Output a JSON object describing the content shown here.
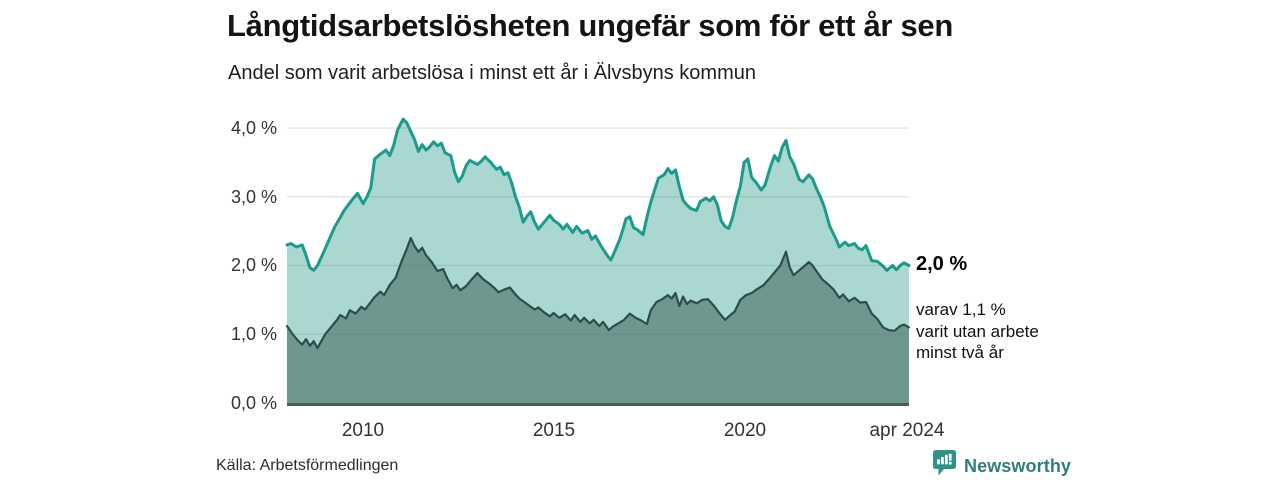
{
  "chart_data": {
    "type": "area",
    "title": "Långtidsarbetslösheten ungefär som för ett år sen",
    "subtitle": "Andel som varit arbetslösa i minst ett år i Älvsbyns kommun",
    "xlim": [
      2008,
      2024.33
    ],
    "ylim": [
      0,
      4.19
    ],
    "grid": "horizontal",
    "legend": "none",
    "y_ticks": [
      "0,0 %",
      "1,0 %",
      "2,0 %",
      "3,0 %",
      "4,0 %"
    ],
    "y_tick_values": [
      0,
      1,
      2,
      3,
      4
    ],
    "x_ticks": [
      {
        "label": "2010",
        "year": 2010
      },
      {
        "label": "2015",
        "year": 2015
      },
      {
        "label": "2020",
        "year": 2020
      },
      {
        "label": "apr 2024",
        "year": 2024.29
      }
    ],
    "grid_color": "rgba(100,100,100,0.17)",
    "axis_color": "#45605b",
    "series": [
      {
        "name": "Andel arbetslösa minst ett år",
        "line_color": "#1a9b8b",
        "fill_color": "#aad7d0",
        "line_width": 3,
        "points": [
          [
            2008.0,
            2.3
          ],
          [
            2008.1,
            2.32
          ],
          [
            2008.25,
            2.27
          ],
          [
            2008.4,
            2.3
          ],
          [
            2008.5,
            2.15
          ],
          [
            2008.6,
            1.97
          ],
          [
            2008.7,
            1.93
          ],
          [
            2008.8,
            2.0
          ],
          [
            2008.95,
            2.18
          ],
          [
            2009.1,
            2.37
          ],
          [
            2009.25,
            2.56
          ],
          [
            2009.4,
            2.7
          ],
          [
            2009.5,
            2.8
          ],
          [
            2009.7,
            2.95
          ],
          [
            2009.85,
            3.05
          ],
          [
            2010.0,
            2.9
          ],
          [
            2010.1,
            3.0
          ],
          [
            2010.2,
            3.13
          ],
          [
            2010.3,
            3.55
          ],
          [
            2010.45,
            3.62
          ],
          [
            2010.6,
            3.68
          ],
          [
            2010.7,
            3.6
          ],
          [
            2010.8,
            3.75
          ],
          [
            2010.9,
            3.97
          ],
          [
            2011.0,
            4.08
          ],
          [
            2011.05,
            4.13
          ],
          [
            2011.15,
            4.07
          ],
          [
            2011.25,
            3.95
          ],
          [
            2011.35,
            3.83
          ],
          [
            2011.45,
            3.66
          ],
          [
            2011.55,
            3.76
          ],
          [
            2011.65,
            3.68
          ],
          [
            2011.75,
            3.73
          ],
          [
            2011.85,
            3.8
          ],
          [
            2011.95,
            3.74
          ],
          [
            2012.05,
            3.78
          ],
          [
            2012.15,
            3.64
          ],
          [
            2012.3,
            3.6
          ],
          [
            2012.4,
            3.36
          ],
          [
            2012.5,
            3.22
          ],
          [
            2012.6,
            3.3
          ],
          [
            2012.7,
            3.45
          ],
          [
            2012.8,
            3.53
          ],
          [
            2012.9,
            3.5
          ],
          [
            2013.0,
            3.47
          ],
          [
            2013.1,
            3.52
          ],
          [
            2013.2,
            3.58
          ],
          [
            2013.35,
            3.5
          ],
          [
            2013.5,
            3.4
          ],
          [
            2013.6,
            3.43
          ],
          [
            2013.7,
            3.32
          ],
          [
            2013.8,
            3.35
          ],
          [
            2013.9,
            3.2
          ],
          [
            2014.0,
            3.0
          ],
          [
            2014.1,
            2.85
          ],
          [
            2014.2,
            2.63
          ],
          [
            2014.3,
            2.72
          ],
          [
            2014.4,
            2.78
          ],
          [
            2014.5,
            2.63
          ],
          [
            2014.6,
            2.53
          ],
          [
            2014.75,
            2.63
          ],
          [
            2014.9,
            2.73
          ],
          [
            2015.0,
            2.66
          ],
          [
            2015.15,
            2.6
          ],
          [
            2015.25,
            2.53
          ],
          [
            2015.35,
            2.6
          ],
          [
            2015.5,
            2.48
          ],
          [
            2015.6,
            2.57
          ],
          [
            2015.75,
            2.47
          ],
          [
            2015.9,
            2.51
          ],
          [
            2016.0,
            2.38
          ],
          [
            2016.1,
            2.43
          ],
          [
            2016.25,
            2.28
          ],
          [
            2016.4,
            2.15
          ],
          [
            2016.5,
            2.08
          ],
          [
            2016.6,
            2.2
          ],
          [
            2016.75,
            2.4
          ],
          [
            2016.9,
            2.68
          ],
          [
            2017.0,
            2.71
          ],
          [
            2017.1,
            2.55
          ],
          [
            2017.2,
            2.52
          ],
          [
            2017.35,
            2.45
          ],
          [
            2017.45,
            2.7
          ],
          [
            2017.55,
            2.92
          ],
          [
            2017.65,
            3.1
          ],
          [
            2017.75,
            3.27
          ],
          [
            2017.9,
            3.32
          ],
          [
            2018.0,
            3.41
          ],
          [
            2018.1,
            3.34
          ],
          [
            2018.2,
            3.39
          ],
          [
            2018.3,
            3.15
          ],
          [
            2018.4,
            2.95
          ],
          [
            2018.5,
            2.88
          ],
          [
            2018.6,
            2.83
          ],
          [
            2018.75,
            2.8
          ],
          [
            2018.85,
            2.93
          ],
          [
            2019.0,
            2.98
          ],
          [
            2019.1,
            2.94
          ],
          [
            2019.2,
            3.0
          ],
          [
            2019.3,
            2.88
          ],
          [
            2019.4,
            2.65
          ],
          [
            2019.5,
            2.57
          ],
          [
            2019.6,
            2.54
          ],
          [
            2019.7,
            2.7
          ],
          [
            2019.8,
            2.95
          ],
          [
            2019.9,
            3.15
          ],
          [
            2020.0,
            3.5
          ],
          [
            2020.1,
            3.55
          ],
          [
            2020.2,
            3.28
          ],
          [
            2020.3,
            3.22
          ],
          [
            2020.45,
            3.1
          ],
          [
            2020.55,
            3.17
          ],
          [
            2020.7,
            3.45
          ],
          [
            2020.8,
            3.6
          ],
          [
            2020.9,
            3.52
          ],
          [
            2021.0,
            3.72
          ],
          [
            2021.1,
            3.82
          ],
          [
            2021.2,
            3.58
          ],
          [
            2021.3,
            3.48
          ],
          [
            2021.45,
            3.25
          ],
          [
            2021.55,
            3.22
          ],
          [
            2021.7,
            3.32
          ],
          [
            2021.8,
            3.26
          ],
          [
            2021.9,
            3.12
          ],
          [
            2022.0,
            3.0
          ],
          [
            2022.1,
            2.86
          ],
          [
            2022.25,
            2.57
          ],
          [
            2022.4,
            2.4
          ],
          [
            2022.5,
            2.27
          ],
          [
            2022.65,
            2.34
          ],
          [
            2022.75,
            2.29
          ],
          [
            2022.9,
            2.32
          ],
          [
            2023.0,
            2.25
          ],
          [
            2023.1,
            2.23
          ],
          [
            2023.2,
            2.29
          ],
          [
            2023.35,
            2.07
          ],
          [
            2023.5,
            2.06
          ],
          [
            2023.65,
            1.99
          ],
          [
            2023.75,
            1.93
          ],
          [
            2023.9,
            2.0
          ],
          [
            2024.0,
            1.94
          ],
          [
            2024.1,
            2.0
          ],
          [
            2024.2,
            2.04
          ],
          [
            2024.33,
            2.0
          ]
        ]
      },
      {
        "name": "Varav utan arbete minst två år",
        "line_color": "#2e4d48",
        "fill_color": "#6d978f",
        "line_width": 2.2,
        "points": [
          [
            2008.0,
            1.12
          ],
          [
            2008.15,
            1.0
          ],
          [
            2008.3,
            0.9
          ],
          [
            2008.4,
            0.85
          ],
          [
            2008.5,
            0.93
          ],
          [
            2008.6,
            0.83
          ],
          [
            2008.7,
            0.9
          ],
          [
            2008.8,
            0.8
          ],
          [
            2008.9,
            0.9
          ],
          [
            2009.0,
            1.0
          ],
          [
            2009.15,
            1.1
          ],
          [
            2009.3,
            1.2
          ],
          [
            2009.4,
            1.28
          ],
          [
            2009.55,
            1.23
          ],
          [
            2009.65,
            1.35
          ],
          [
            2009.8,
            1.3
          ],
          [
            2009.95,
            1.4
          ],
          [
            2010.05,
            1.36
          ],
          [
            2010.2,
            1.47
          ],
          [
            2010.3,
            1.54
          ],
          [
            2010.45,
            1.62
          ],
          [
            2010.55,
            1.57
          ],
          [
            2010.7,
            1.72
          ],
          [
            2010.85,
            1.82
          ],
          [
            2011.0,
            2.05
          ],
          [
            2011.15,
            2.25
          ],
          [
            2011.25,
            2.4
          ],
          [
            2011.35,
            2.28
          ],
          [
            2011.45,
            2.2
          ],
          [
            2011.55,
            2.26
          ],
          [
            2011.65,
            2.15
          ],
          [
            2011.8,
            2.05
          ],
          [
            2011.95,
            1.92
          ],
          [
            2012.1,
            1.95
          ],
          [
            2012.2,
            1.82
          ],
          [
            2012.35,
            1.67
          ],
          [
            2012.45,
            1.72
          ],
          [
            2012.55,
            1.64
          ],
          [
            2012.7,
            1.7
          ],
          [
            2012.85,
            1.8
          ],
          [
            2013.0,
            1.89
          ],
          [
            2013.15,
            1.8
          ],
          [
            2013.3,
            1.74
          ],
          [
            2013.45,
            1.67
          ],
          [
            2013.55,
            1.61
          ],
          [
            2013.7,
            1.65
          ],
          [
            2013.85,
            1.68
          ],
          [
            2014.0,
            1.58
          ],
          [
            2014.1,
            1.52
          ],
          [
            2014.25,
            1.46
          ],
          [
            2014.4,
            1.4
          ],
          [
            2014.5,
            1.36
          ],
          [
            2014.6,
            1.39
          ],
          [
            2014.75,
            1.32
          ],
          [
            2014.9,
            1.26
          ],
          [
            2015.0,
            1.31
          ],
          [
            2015.15,
            1.24
          ],
          [
            2015.3,
            1.29
          ],
          [
            2015.45,
            1.2
          ],
          [
            2015.55,
            1.28
          ],
          [
            2015.7,
            1.18
          ],
          [
            2015.8,
            1.24
          ],
          [
            2015.95,
            1.16
          ],
          [
            2016.05,
            1.21
          ],
          [
            2016.2,
            1.12
          ],
          [
            2016.3,
            1.18
          ],
          [
            2016.45,
            1.06
          ],
          [
            2016.55,
            1.11
          ],
          [
            2016.7,
            1.16
          ],
          [
            2016.85,
            1.21
          ],
          [
            2017.0,
            1.3
          ],
          [
            2017.15,
            1.24
          ],
          [
            2017.3,
            1.2
          ],
          [
            2017.45,
            1.15
          ],
          [
            2017.55,
            1.35
          ],
          [
            2017.7,
            1.47
          ],
          [
            2017.85,
            1.51
          ],
          [
            2018.0,
            1.57
          ],
          [
            2018.1,
            1.52
          ],
          [
            2018.2,
            1.6
          ],
          [
            2018.3,
            1.41
          ],
          [
            2018.4,
            1.55
          ],
          [
            2018.5,
            1.44
          ],
          [
            2018.6,
            1.49
          ],
          [
            2018.75,
            1.45
          ],
          [
            2018.9,
            1.5
          ],
          [
            2019.05,
            1.51
          ],
          [
            2019.2,
            1.42
          ],
          [
            2019.35,
            1.31
          ],
          [
            2019.5,
            1.21
          ],
          [
            2019.6,
            1.26
          ],
          [
            2019.75,
            1.33
          ],
          [
            2019.9,
            1.5
          ],
          [
            2020.05,
            1.57
          ],
          [
            2020.2,
            1.6
          ],
          [
            2020.35,
            1.66
          ],
          [
            2020.5,
            1.71
          ],
          [
            2020.65,
            1.8
          ],
          [
            2020.8,
            1.9
          ],
          [
            2020.95,
            2.0
          ],
          [
            2021.1,
            2.2
          ],
          [
            2021.2,
            1.97
          ],
          [
            2021.3,
            1.86
          ],
          [
            2021.45,
            1.93
          ],
          [
            2021.6,
            2.0
          ],
          [
            2021.7,
            2.05
          ],
          [
            2021.8,
            2.0
          ],
          [
            2021.9,
            1.92
          ],
          [
            2022.05,
            1.8
          ],
          [
            2022.2,
            1.73
          ],
          [
            2022.35,
            1.65
          ],
          [
            2022.5,
            1.53
          ],
          [
            2022.6,
            1.58
          ],
          [
            2022.75,
            1.48
          ],
          [
            2022.9,
            1.53
          ],
          [
            2023.05,
            1.46
          ],
          [
            2023.2,
            1.47
          ],
          [
            2023.35,
            1.3
          ],
          [
            2023.5,
            1.22
          ],
          [
            2023.65,
            1.1
          ],
          [
            2023.8,
            1.06
          ],
          [
            2023.95,
            1.05
          ],
          [
            2024.1,
            1.12
          ],
          [
            2024.2,
            1.14
          ],
          [
            2024.33,
            1.1
          ]
        ]
      }
    ],
    "end_labels": {
      "total": "2,0 %",
      "detail_lines": [
        "varav 1,1 %",
        "varit utan arbete",
        "minst två år"
      ]
    }
  },
  "footer": {
    "source": "Källa: Arbetsförmedlingen",
    "logo_text": "Newsworthy",
    "logo_color": "#2f9387"
  }
}
